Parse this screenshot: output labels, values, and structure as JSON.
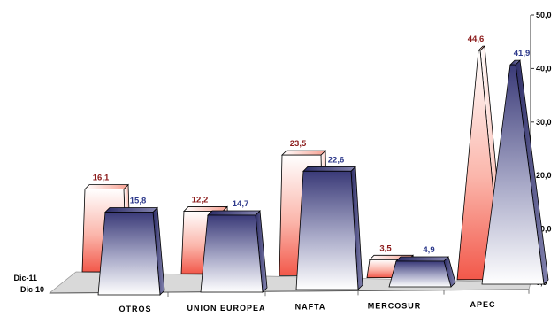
{
  "chart_data": {
    "type": "bar",
    "categories": [
      "OTROS",
      "UNION EUROPEA",
      "NAFTA",
      "MERCOSUR",
      "APEC"
    ],
    "series": [
      {
        "name": "Dic-11",
        "values": [
          16.1,
          12.2,
          23.5,
          3.5,
          44.6
        ],
        "labels": [
          "16,1",
          "12,2",
          "23,5",
          "3,5",
          "44,6"
        ],
        "color": "#f25a4a",
        "label_color": "#8b1a1a"
      },
      {
        "name": "Dic-10",
        "values": [
          15.8,
          14.7,
          22.6,
          4.9,
          41.9
        ],
        "labels": [
          "15,8",
          "14,7",
          "22,6",
          "4,9",
          "41,9"
        ],
        "color": "#3a3a78",
        "label_color": "#2e3a8c"
      }
    ],
    "y_ticks": [
      "0,0",
      "10,0",
      "20,0",
      "30,0",
      "40,0",
      "50,0"
    ],
    "ylim": [
      0,
      50
    ],
    "legend": "series labels on depth axis (left)"
  }
}
